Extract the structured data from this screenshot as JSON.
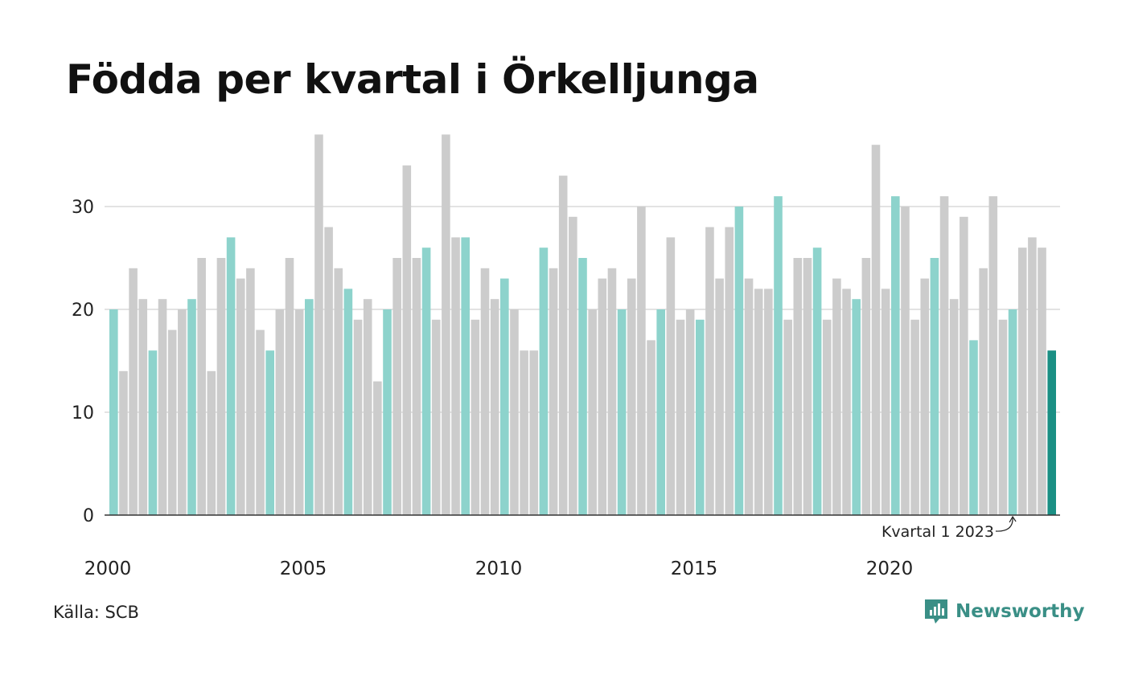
{
  "title": "Födda per kvartal i Örkelljunga",
  "source": "Källa: SCB",
  "brand": "Newsworthy",
  "colors": {
    "q1_bar": "#8dd3cc",
    "other_bar": "#cccccc",
    "highlight_bar": "#1a8f84",
    "grid": "#e3e3e3",
    "axis": "#333333",
    "brand": "#3a8f86"
  },
  "chart_data": {
    "type": "bar",
    "title": "Födda per kvartal i Örkelljunga",
    "xlabel": "",
    "ylabel": "",
    "ylim": [
      0,
      37
    ],
    "yticks": [
      0,
      10,
      20,
      30
    ],
    "xticks": [
      "2000",
      "2005",
      "2010",
      "2015",
      "2020"
    ],
    "grid": true,
    "start_year": 2000,
    "values": [
      20,
      14,
      24,
      21,
      16,
      21,
      18,
      20,
      21,
      25,
      14,
      25,
      27,
      23,
      24,
      18,
      16,
      20,
      25,
      20,
      21,
      37,
      28,
      24,
      22,
      19,
      21,
      13,
      20,
      25,
      34,
      25,
      26,
      19,
      37,
      27,
      27,
      19,
      24,
      21,
      23,
      20,
      16,
      16,
      26,
      24,
      33,
      29,
      25,
      20,
      23,
      24,
      20,
      23,
      30,
      17,
      20,
      27,
      19,
      20,
      19,
      28,
      23,
      28,
      30,
      23,
      22,
      22,
      31,
      19,
      25,
      25,
      26,
      19,
      23,
      22,
      21,
      25,
      36,
      22,
      31,
      30,
      19,
      23,
      25,
      31,
      21,
      29,
      17,
      24,
      31,
      19,
      20,
      26,
      27,
      26,
      16
    ],
    "annotation": {
      "text": "Kvartal 1 2023",
      "target_index": 92
    }
  }
}
